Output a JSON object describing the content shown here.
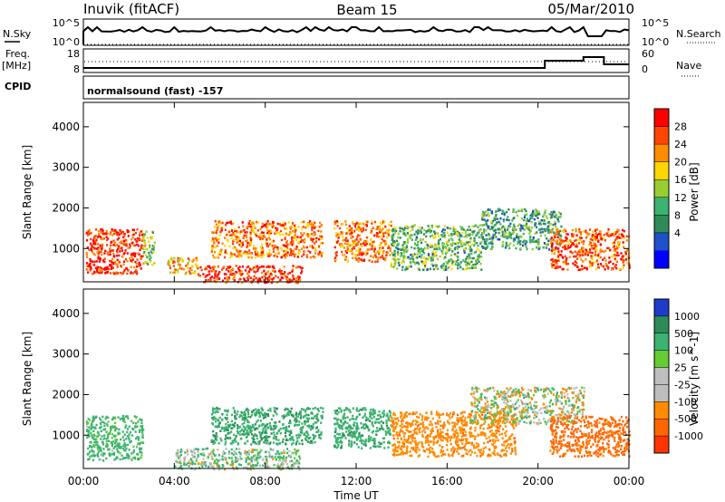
{
  "header": {
    "station": "Inuvik (fitACF)",
    "beam": "Beam 15",
    "date": "05/Mar/2010"
  },
  "summary": {
    "nsky_label": "N.Sky",
    "nsearch_label": "N.Search",
    "freq_label_1": "Freq.",
    "freq_label_2": "[MHz]",
    "nave_label": "Nave",
    "cpid_label": "CPID",
    "cpid_value": "normalsound (fast) -157",
    "noise_ticks_left": [
      "10^5",
      "10^0"
    ],
    "noise_ticks_right": [
      "10^5",
      "10^0"
    ],
    "freq_ticks": [
      "18",
      "8"
    ],
    "nave_ticks": [
      "60",
      "0"
    ]
  },
  "power_colorbar": {
    "label": "Power [dB]",
    "ticks": [
      "28",
      "24",
      "20",
      "16",
      "12",
      "8",
      "4"
    ],
    "colors": [
      "#ff0000",
      "#ff4500",
      "#ff8c00",
      "#ffd700",
      "#9acd32",
      "#3cb371",
      "#2e8b57",
      "#1e50c8",
      "#0000ff"
    ]
  },
  "velocity_colorbar": {
    "label": "Velocity [m s^-1]",
    "ticks": [
      "1000",
      "500",
      "100",
      "25",
      "-25",
      "-100",
      "-500",
      "-1000"
    ],
    "colors": [
      "#1e3cc8",
      "#2e8b57",
      "#3cb371",
      "#66cc33",
      "#bebebe",
      "#bebebe",
      "#ff8c00",
      "#ff6600",
      "#ff3300"
    ]
  },
  "chart_data": [
    {
      "type": "heatmap",
      "title": "",
      "xlabel": "Time UT",
      "ylabel": "Slant Range [km]",
      "zlabel": "Power [dB]",
      "xlim": [
        0,
        24
      ],
      "ylim": [
        180,
        4600
      ],
      "x_ticks": [
        "00:00",
        "04:00",
        "08:00",
        "12:00",
        "16:00",
        "20:00",
        "00:00"
      ],
      "y_ticks": [
        "1000",
        "2000",
        "3000",
        "4000"
      ],
      "grid": false,
      "regions": [
        {
          "t0": 0.1,
          "t1": 2.6,
          "r0": 400,
          "r1": 1500,
          "value": 28
        },
        {
          "t0": 2.6,
          "t1": 3.1,
          "r0": 600,
          "r1": 1500,
          "value": 14
        },
        {
          "t0": 3.6,
          "t1": 5.0,
          "r0": 400,
          "r1": 800,
          "value": 20
        },
        {
          "t0": 5.0,
          "t1": 9.6,
          "r0": 180,
          "r1": 600,
          "value": 28
        },
        {
          "t0": 5.6,
          "t1": 10.5,
          "r0": 800,
          "r1": 1700,
          "value": 24
        },
        {
          "t0": 11.0,
          "t1": 13.5,
          "r0": 700,
          "r1": 1700,
          "value": 24
        },
        {
          "t0": 13.5,
          "t1": 17.5,
          "r0": 500,
          "r1": 1600,
          "value": 12
        },
        {
          "t0": 17.5,
          "t1": 21.0,
          "r0": 1000,
          "r1": 2000,
          "value": 10
        },
        {
          "t0": 20.5,
          "t1": 24.0,
          "r0": 500,
          "r1": 1500,
          "value": 26
        }
      ]
    },
    {
      "type": "heatmap",
      "title": "",
      "xlabel": "Time UT",
      "ylabel": "Slant Range [km]",
      "zlabel": "Velocity [m s^-1]",
      "xlim": [
        0,
        24
      ],
      "ylim": [
        180,
        4600
      ],
      "x_ticks": [
        "00:00",
        "04:00",
        "08:00",
        "12:00",
        "16:00",
        "20:00",
        "00:00"
      ],
      "y_ticks": [
        "1000",
        "2000",
        "3000",
        "4000"
      ],
      "grid": false,
      "regions": [
        {
          "t0": 0.1,
          "t1": 2.6,
          "r0": 400,
          "r1": 1500,
          "value": 150
        },
        {
          "t0": 5.6,
          "t1": 10.5,
          "r0": 800,
          "r1": 1700,
          "value": 250
        },
        {
          "t0": 4.0,
          "t1": 9.5,
          "r0": 180,
          "r1": 700,
          "value": 50
        },
        {
          "t0": 11.0,
          "t1": 13.5,
          "r0": 700,
          "r1": 1700,
          "value": 200
        },
        {
          "t0": 13.5,
          "t1": 19.0,
          "r0": 500,
          "r1": 1600,
          "value": -200
        },
        {
          "t0": 17.0,
          "t1": 22.0,
          "r0": 1300,
          "r1": 2200,
          "value": 0
        },
        {
          "t0": 20.5,
          "t1": 24.0,
          "r0": 500,
          "r1": 1500,
          "value": -400
        }
      ]
    }
  ]
}
